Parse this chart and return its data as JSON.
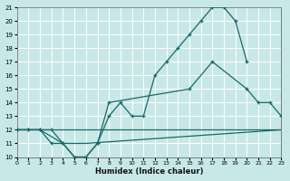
{
  "xlabel": "Humidex (Indice chaleur)",
  "bg_color": "#c8e8e8",
  "grid_color": "#b0d8d8",
  "line_color": "#1a6868",
  "xlim": [
    0,
    23
  ],
  "ylim": [
    10,
    21
  ],
  "xticks": [
    0,
    1,
    2,
    3,
    4,
    5,
    6,
    7,
    8,
    9,
    10,
    11,
    12,
    13,
    14,
    15,
    16,
    17,
    18,
    19,
    20,
    21,
    22,
    23
  ],
  "yticks": [
    10,
    11,
    12,
    13,
    14,
    15,
    16,
    17,
    18,
    19,
    20,
    21
  ],
  "curve1_x": [
    0,
    1,
    2,
    3,
    4,
    5,
    6,
    7,
    8,
    9,
    10,
    11,
    12,
    13,
    14,
    15,
    16,
    17,
    18,
    19,
    20
  ],
  "curve1_y": [
    12,
    12,
    12,
    11,
    11,
    10,
    10,
    11,
    13,
    14,
    13,
    13,
    16,
    17,
    18,
    19,
    20,
    21,
    21,
    20,
    17
  ],
  "curve2_x": [
    0,
    1,
    2,
    3,
    4,
    5,
    6,
    7,
    8,
    15,
    17,
    20,
    21,
    22,
    23
  ],
  "curve2_y": [
    12,
    12,
    12,
    12,
    11,
    10,
    10,
    11,
    14,
    15,
    17,
    15,
    14,
    14,
    13
  ],
  "curve3_x": [
    0,
    2,
    23
  ],
  "curve3_y": [
    12,
    12,
    12
  ],
  "curve4_x": [
    0,
    2,
    4,
    5,
    6,
    23
  ],
  "curve4_y": [
    12,
    12,
    11,
    11,
    11,
    12
  ]
}
